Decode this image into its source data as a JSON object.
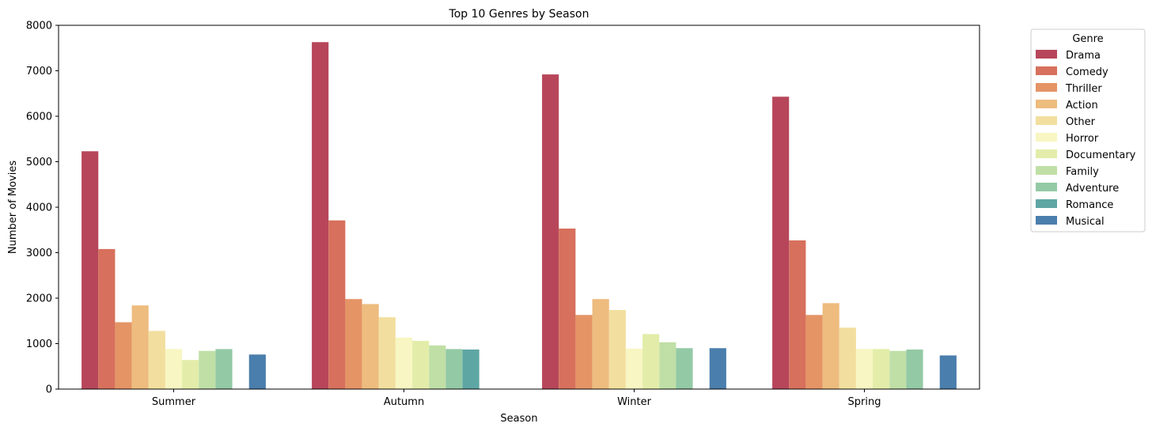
{
  "chart_data": {
    "type": "bar",
    "title": "Top 10 Genres by Season",
    "xlabel": "Season",
    "ylabel": "Number of Movies",
    "ylim": [
      0,
      8000
    ],
    "yticks": [
      0,
      1000,
      2000,
      3000,
      4000,
      5000,
      6000,
      7000,
      8000
    ],
    "grid": false,
    "legend_title": "Genre",
    "legend_position": "outside upper right",
    "categories": [
      "Summer",
      "Autumn",
      "Winter",
      "Spring"
    ],
    "series": [
      {
        "name": "Drama",
        "color": "#b7465a",
        "values": [
          5230,
          7630,
          6920,
          6430
        ]
      },
      {
        "name": "Comedy",
        "color": "#d7705c",
        "values": [
          3080,
          3710,
          3530,
          3270
        ]
      },
      {
        "name": "Thriller",
        "color": "#e59466",
        "values": [
          1470,
          1980,
          1630,
          1630
        ]
      },
      {
        "name": "Action",
        "color": "#edbc7e",
        "values": [
          1840,
          1870,
          1980,
          1890
        ]
      },
      {
        "name": "Other",
        "color": "#f2df9f",
        "values": [
          1280,
          1580,
          1740,
          1350
        ]
      },
      {
        "name": "Horror",
        "color": "#f8f6c2",
        "values": [
          880,
          1130,
          890,
          880
        ]
      },
      {
        "name": "Documentary",
        "color": "#e3eda9",
        "values": [
          640,
          1060,
          1210,
          880
        ]
      },
      {
        "name": "Family",
        "color": "#c0dfa6",
        "values": [
          840,
          960,
          1030,
          840
        ]
      },
      {
        "name": "Adventure",
        "color": "#93c9a5",
        "values": [
          880,
          880,
          900,
          870
        ]
      },
      {
        "name": "Romance",
        "color": "#5ea6a4",
        "values": [
          null,
          870,
          null,
          null
        ]
      },
      {
        "name": "Musical",
        "color": "#4a7eac",
        "values": [
          760,
          null,
          900,
          740
        ]
      }
    ]
  }
}
